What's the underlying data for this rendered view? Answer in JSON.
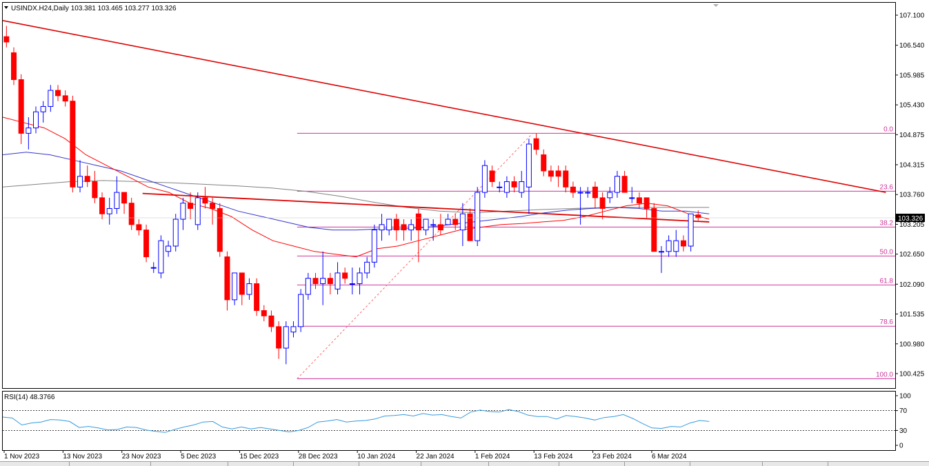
{
  "window": {
    "title": "USINDX.H24,Daily  103.381 103.465 103.277 103.326",
    "symbol": "USINDX.H24",
    "timeframe": "Daily"
  },
  "price_axis": {
    "ticks": [
      "107.100",
      "106.540",
      "105.985",
      "105.430",
      "104.875",
      "104.315",
      "103.760",
      "103.205",
      "102.650",
      "102.090",
      "101.535",
      "100.980",
      "100.425"
    ],
    "current_price_label": "103.326"
  },
  "rsi_panel": {
    "label": "RSI(14) 48.3766",
    "ticks": [
      "100",
      "70",
      "30",
      "0"
    ]
  },
  "time_axis": {
    "labels": [
      "1 Nov 2023",
      "13 Nov 2023",
      "23 Nov 2023",
      "5 Dec 2023",
      "15 Dec 2023",
      "28 Dec 2023",
      "10 Jan 2024",
      "22 Jan 2024",
      "1 Feb 2024",
      "13 Feb 2024",
      "23 Feb 2024",
      "6 Mar 2024"
    ]
  },
  "fibonacci": {
    "levels": [
      "0.0",
      "23.6",
      "38.2",
      "50.0",
      "61.8",
      "78.6",
      "100.0"
    ]
  },
  "colors": {
    "bull": "#0000ff",
    "bear": "#ff0000",
    "ma_fast": "#ff0000",
    "ma_mid": "#3333cc",
    "ma_slow": "#808080",
    "trendline": "#dd0000",
    "fib": "#cc3399",
    "rsi": "#3399dd"
  },
  "chart_data": {
    "type": "candlestick",
    "symbol": "USINDX.H24",
    "timeframe": "Daily",
    "ylim": [
      100.2,
      107.3
    ],
    "fib_range": [
      100.33,
      104.9
    ],
    "fib_levels": [
      0.0,
      23.6,
      38.2,
      50.0,
      61.8,
      78.6,
      100.0
    ],
    "last_price": 103.326,
    "candles": [
      [
        106.7,
        106.9,
        106.5,
        106.6
      ],
      [
        106.4,
        106.5,
        105.8,
        105.9
      ],
      [
        105.9,
        106.0,
        104.7,
        104.9
      ],
      [
        104.9,
        105.2,
        104.6,
        105.0
      ],
      [
        105.0,
        105.4,
        104.9,
        105.3
      ],
      [
        105.3,
        105.5,
        105.1,
        105.4
      ],
      [
        105.4,
        105.8,
        105.3,
        105.7
      ],
      [
        105.7,
        105.8,
        105.5,
        105.6
      ],
      [
        105.6,
        105.7,
        105.4,
        105.5
      ],
      [
        105.5,
        105.6,
        103.8,
        103.9
      ],
      [
        103.9,
        104.4,
        103.8,
        104.1
      ],
      [
        104.1,
        104.3,
        103.9,
        104.0
      ],
      [
        104.0,
        104.2,
        103.6,
        103.7
      ],
      [
        103.7,
        103.8,
        103.3,
        103.4
      ],
      [
        103.4,
        103.7,
        103.2,
        103.5
      ],
      [
        103.5,
        104.1,
        103.4,
        103.8
      ],
      [
        103.8,
        103.8,
        103.4,
        103.6
      ],
      [
        103.6,
        103.7,
        103.1,
        103.2
      ],
      [
        103.2,
        103.3,
        103.0,
        103.1
      ],
      [
        103.1,
        103.2,
        102.5,
        102.6
      ],
      [
        102.4,
        102.5,
        102.3,
        102.4
      ],
      [
        102.3,
        103.0,
        102.2,
        102.9
      ],
      [
        102.7,
        102.9,
        102.6,
        102.8
      ],
      [
        102.8,
        103.4,
        102.7,
        103.3
      ],
      [
        103.3,
        103.7,
        103.1,
        103.6
      ],
      [
        103.6,
        103.8,
        103.3,
        103.5
      ],
      [
        103.2,
        103.8,
        103.1,
        103.7
      ],
      [
        103.7,
        103.9,
        103.5,
        103.6
      ],
      [
        103.6,
        103.7,
        103.2,
        103.5
      ],
      [
        103.5,
        103.6,
        102.6,
        102.7
      ],
      [
        102.6,
        102.7,
        101.6,
        101.8
      ],
      [
        101.8,
        102.3,
        101.7,
        102.3
      ],
      [
        102.3,
        102.3,
        101.7,
        101.9
      ],
      [
        101.9,
        102.2,
        101.8,
        102.1
      ],
      [
        102.1,
        102.2,
        101.5,
        101.6
      ],
      [
        101.6,
        101.7,
        101.4,
        101.5
      ],
      [
        101.5,
        101.6,
        101.2,
        101.3
      ],
      [
        101.3,
        101.4,
        100.7,
        100.9
      ],
      [
        100.9,
        101.4,
        100.6,
        101.3
      ],
      [
        101.2,
        101.4,
        101.1,
        101.3
      ],
      [
        101.3,
        102.0,
        101.2,
        101.9
      ],
      [
        101.9,
        102.3,
        101.8,
        102.2
      ],
      [
        102.2,
        102.3,
        102.0,
        102.1
      ],
      [
        102.1,
        102.7,
        101.7,
        102.2
      ],
      [
        102.2,
        102.3,
        101.9,
        102.1
      ],
      [
        102.0,
        102.5,
        101.9,
        102.3
      ],
      [
        102.3,
        102.4,
        102.1,
        102.2
      ],
      [
        102.1,
        102.4,
        101.9,
        102.1
      ],
      [
        102.1,
        102.4,
        101.9,
        102.3
      ],
      [
        102.3,
        102.6,
        102.2,
        102.5
      ],
      [
        102.5,
        103.2,
        102.4,
        103.1
      ],
      [
        103.1,
        103.4,
        102.9,
        103.2
      ],
      [
        103.1,
        103.3,
        103.0,
        103.3
      ],
      [
        103.3,
        103.4,
        102.9,
        103.1
      ],
      [
        103.2,
        103.3,
        102.9,
        103.1
      ],
      [
        103.1,
        103.3,
        102.9,
        103.2
      ],
      [
        103.4,
        103.5,
        102.5,
        103.1
      ],
      [
        103.1,
        103.3,
        103.0,
        103.3
      ],
      [
        103.2,
        103.3,
        102.9,
        103.2
      ],
      [
        103.2,
        103.4,
        103.0,
        103.1
      ],
      [
        103.2,
        103.4,
        103.2,
        103.3
      ],
      [
        103.3,
        103.4,
        103.1,
        103.2
      ],
      [
        103.1,
        103.6,
        102.8,
        103.4
      ],
      [
        103.4,
        103.5,
        102.9,
        102.9
      ],
      [
        102.9,
        103.9,
        102.8,
        103.8
      ],
      [
        103.8,
        104.4,
        103.7,
        104.3
      ],
      [
        104.2,
        104.3,
        103.9,
        104.0
      ],
      [
        103.9,
        104.0,
        103.8,
        103.9
      ],
      [
        103.8,
        104.1,
        103.7,
        104.0
      ],
      [
        104.0,
        104.1,
        103.8,
        103.9
      ],
      [
        103.8,
        104.2,
        103.7,
        104.0
      ],
      [
        103.9,
        104.8,
        103.4,
        104.7
      ],
      [
        104.8,
        104.9,
        104.5,
        104.6
      ],
      [
        104.5,
        104.6,
        104.1,
        104.2
      ],
      [
        104.2,
        104.3,
        104.0,
        104.1
      ],
      [
        104.2,
        104.3,
        103.9,
        104.1
      ],
      [
        104.2,
        104.3,
        103.8,
        103.9
      ],
      [
        103.9,
        104.0,
        103.7,
        103.8
      ],
      [
        103.8,
        103.9,
        103.2,
        103.8
      ],
      [
        103.8,
        103.9,
        103.7,
        103.8
      ],
      [
        103.9,
        104.0,
        103.5,
        103.7
      ],
      [
        103.7,
        103.8,
        103.3,
        103.5
      ],
      [
        103.7,
        103.9,
        103.6,
        103.8
      ],
      [
        103.8,
        104.2,
        103.7,
        104.1
      ],
      [
        104.1,
        104.2,
        103.8,
        103.8
      ],
      [
        103.7,
        103.9,
        103.6,
        103.7
      ],
      [
        103.7,
        103.8,
        103.5,
        103.6
      ],
      [
        103.7,
        103.7,
        103.3,
        103.5
      ],
      [
        103.5,
        103.6,
        102.7,
        102.7
      ],
      [
        102.7,
        102.8,
        102.3,
        102.7
      ],
      [
        102.7,
        103.0,
        102.6,
        102.9
      ],
      [
        102.7,
        103.1,
        102.6,
        102.9
      ],
      [
        102.9,
        103.0,
        102.7,
        102.8
      ],
      [
        102.8,
        103.4,
        102.7,
        103.4
      ],
      [
        103.381,
        103.465,
        103.277,
        103.326
      ]
    ],
    "ma_fast": [
      105.2,
      105.1,
      105.0,
      104.8,
      104.5,
      104.3,
      104.1,
      103.9,
      103.8,
      103.6,
      103.5,
      103.35,
      103.1,
      102.9,
      102.8,
      102.7,
      102.65,
      102.6,
      102.75,
      102.8,
      102.9,
      103.0,
      103.1,
      103.15,
      103.2,
      103.22,
      103.25,
      103.28,
      103.35,
      103.45,
      103.55,
      103.6,
      103.55,
      103.4,
      103.3
    ],
    "ma_mid": [
      104.5,
      104.55,
      104.5,
      104.4,
      104.3,
      104.2,
      104.05,
      103.9,
      103.75,
      103.6,
      103.45,
      103.35,
      103.25,
      103.15,
      103.1,
      103.1,
      103.12,
      103.12,
      103.15,
      103.2,
      103.25,
      103.3,
      103.35,
      103.42,
      103.47,
      103.5,
      103.52,
      103.5,
      103.45,
      103.45,
      103.4
    ],
    "ma_slow": [
      103.9,
      103.95,
      104.0,
      104.02,
      104.0,
      103.98,
      103.95,
      103.92,
      103.88,
      103.82,
      103.73,
      103.62,
      103.52,
      103.45,
      103.42,
      103.45,
      103.48,
      103.5,
      103.52,
      103.52,
      103.52,
      103.52
    ],
    "rsi": [
      57,
      55,
      41,
      45,
      47,
      52,
      51,
      48,
      36,
      38,
      35,
      31,
      32,
      37,
      36,
      31,
      28,
      26,
      32,
      37,
      41,
      47,
      48,
      37,
      33,
      37,
      33,
      36,
      33,
      30,
      27,
      30,
      36,
      47,
      49,
      52,
      47,
      49,
      50,
      53,
      59,
      60,
      62,
      59,
      64,
      61,
      62,
      58,
      55,
      67,
      71,
      68,
      67,
      72,
      68,
      61,
      58,
      58,
      53,
      60,
      58,
      55,
      51,
      56,
      58,
      62,
      54,
      44,
      35,
      34,
      38,
      37,
      45,
      50,
      48
    ],
    "trendlines": [
      {
        "from": [
          0,
          107.0
        ],
        "to": [
          120,
          103.8
        ]
      },
      {
        "from": [
          19,
          103.78
        ],
        "to": [
          96,
          103.25
        ]
      }
    ]
  }
}
